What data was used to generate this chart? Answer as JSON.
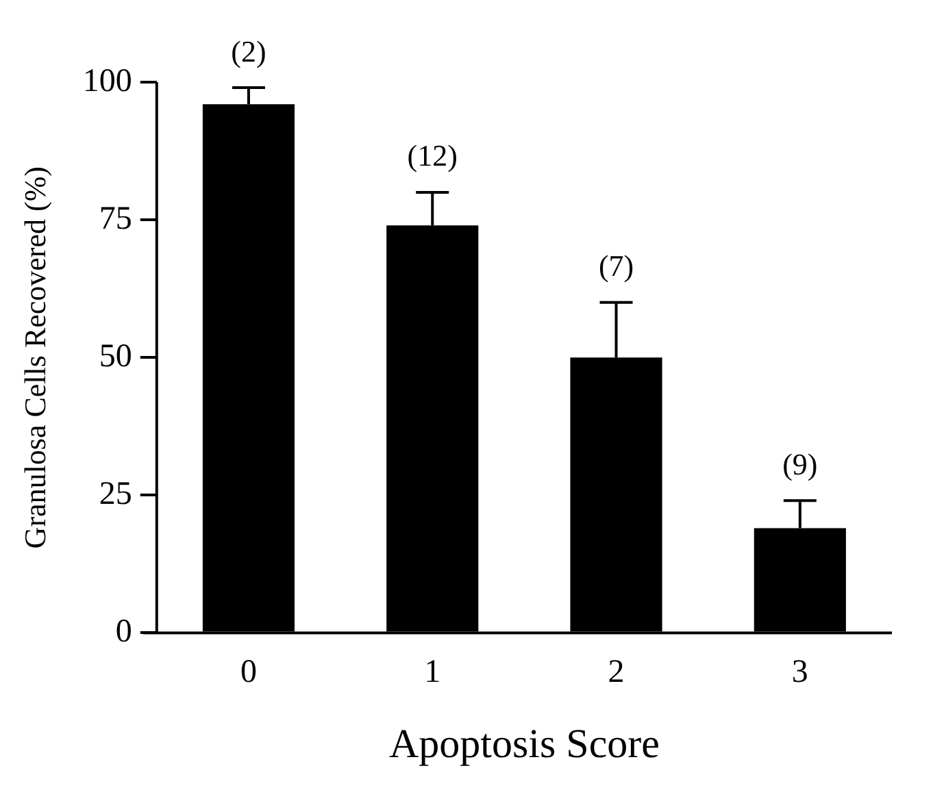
{
  "chart_data": {
    "type": "bar",
    "xlabel": "Apoptosis Score",
    "ylabel": "Granulosa Cells Recovered (%)",
    "categories": [
      "0",
      "1",
      "2",
      "3"
    ],
    "values": [
      96,
      74,
      50,
      19
    ],
    "errors": [
      [
        96,
        99
      ],
      [
        74,
        80
      ],
      [
        50,
        60
      ],
      [
        19,
        24
      ]
    ],
    "color": "#000000",
    "ylim": [
      0,
      100
    ],
    "yticks": [
      0,
      25,
      50,
      75,
      100
    ],
    "grid": false,
    "legend": false,
    "annotations": [
      {
        "text": "(2)",
        "x": "0",
        "y": 99
      },
      {
        "text": "(12)",
        "x": "1",
        "y": 80
      },
      {
        "text": "(7)",
        "x": "2",
        "y": 60
      },
      {
        "text": "(9)",
        "x": "3",
        "y": 24
      }
    ]
  }
}
